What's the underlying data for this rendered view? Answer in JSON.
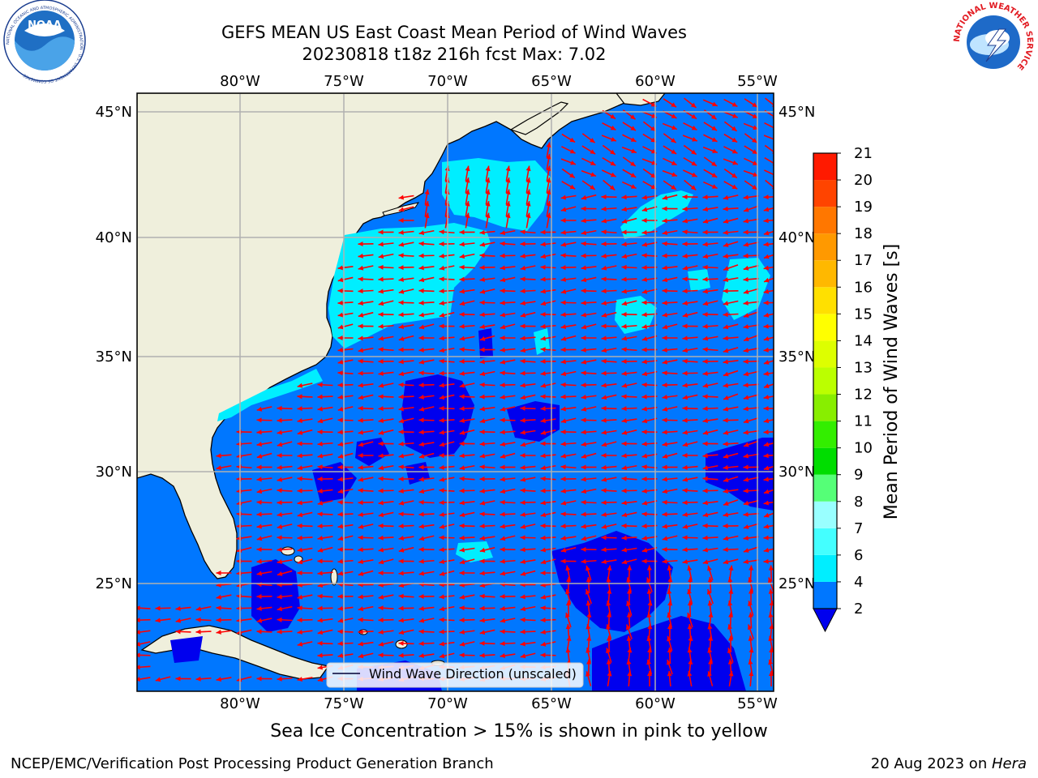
{
  "header": {
    "title_line1": "GEFS MEAN US East Coast Mean Period of Wind Waves",
    "title_line2": "20230818 t18z 216h fcst   Max: 7.02"
  },
  "map": {
    "lon_labels": [
      "80°W",
      "75°W",
      "70°W",
      "65°W",
      "60°W",
      "55°W"
    ],
    "lat_labels": [
      "45°N",
      "40°N",
      "35°N",
      "30°N",
      "25°N"
    ],
    "legend_label": "Wind Wave Direction (unscaled)",
    "arrow_color": "#ff0000",
    "land_color": "#efefdc",
    "coastline_color": "#000000",
    "grid_color": "#b0b0b0"
  },
  "colorbar": {
    "label": "Mean Period of Wind Waves [s]",
    "ticks": [
      "2",
      "4",
      "6",
      "7",
      "8",
      "9",
      "10",
      "11",
      "12",
      "13",
      "14",
      "15",
      "16",
      "17",
      "18",
      "19",
      "20",
      "21"
    ],
    "colors": [
      "#0077ff",
      "#00eeff",
      "#44ffff",
      "#99ffff",
      "#55ff77",
      "#00dd00",
      "#33ee00",
      "#88ee00",
      "#bbff00",
      "#ddff00",
      "#ffff00",
      "#ffe000",
      "#ffb800",
      "#ff9900",
      "#ff7700",
      "#ff4400",
      "#ff1a00",
      "#ff0000"
    ],
    "under_color": "#0000ee"
  },
  "subtitle": "Sea Ice Concentration > 15% is shown in pink to yellow",
  "footer": {
    "left": "NCEP/EMC/Verification Post Processing Product Generation Branch",
    "right_prefix": "20 Aug 2023 on ",
    "right_italic": "Hera"
  },
  "logos": {
    "noaa_text": "NOAA",
    "noaa_ring": "NATIONAL OCEANIC AND ATMOSPHERIC ADMINISTRATION · U.S. DEPARTMENT OF COMMERCE",
    "nws_ring": "NATIONAL WEATHER SERVICE"
  }
}
